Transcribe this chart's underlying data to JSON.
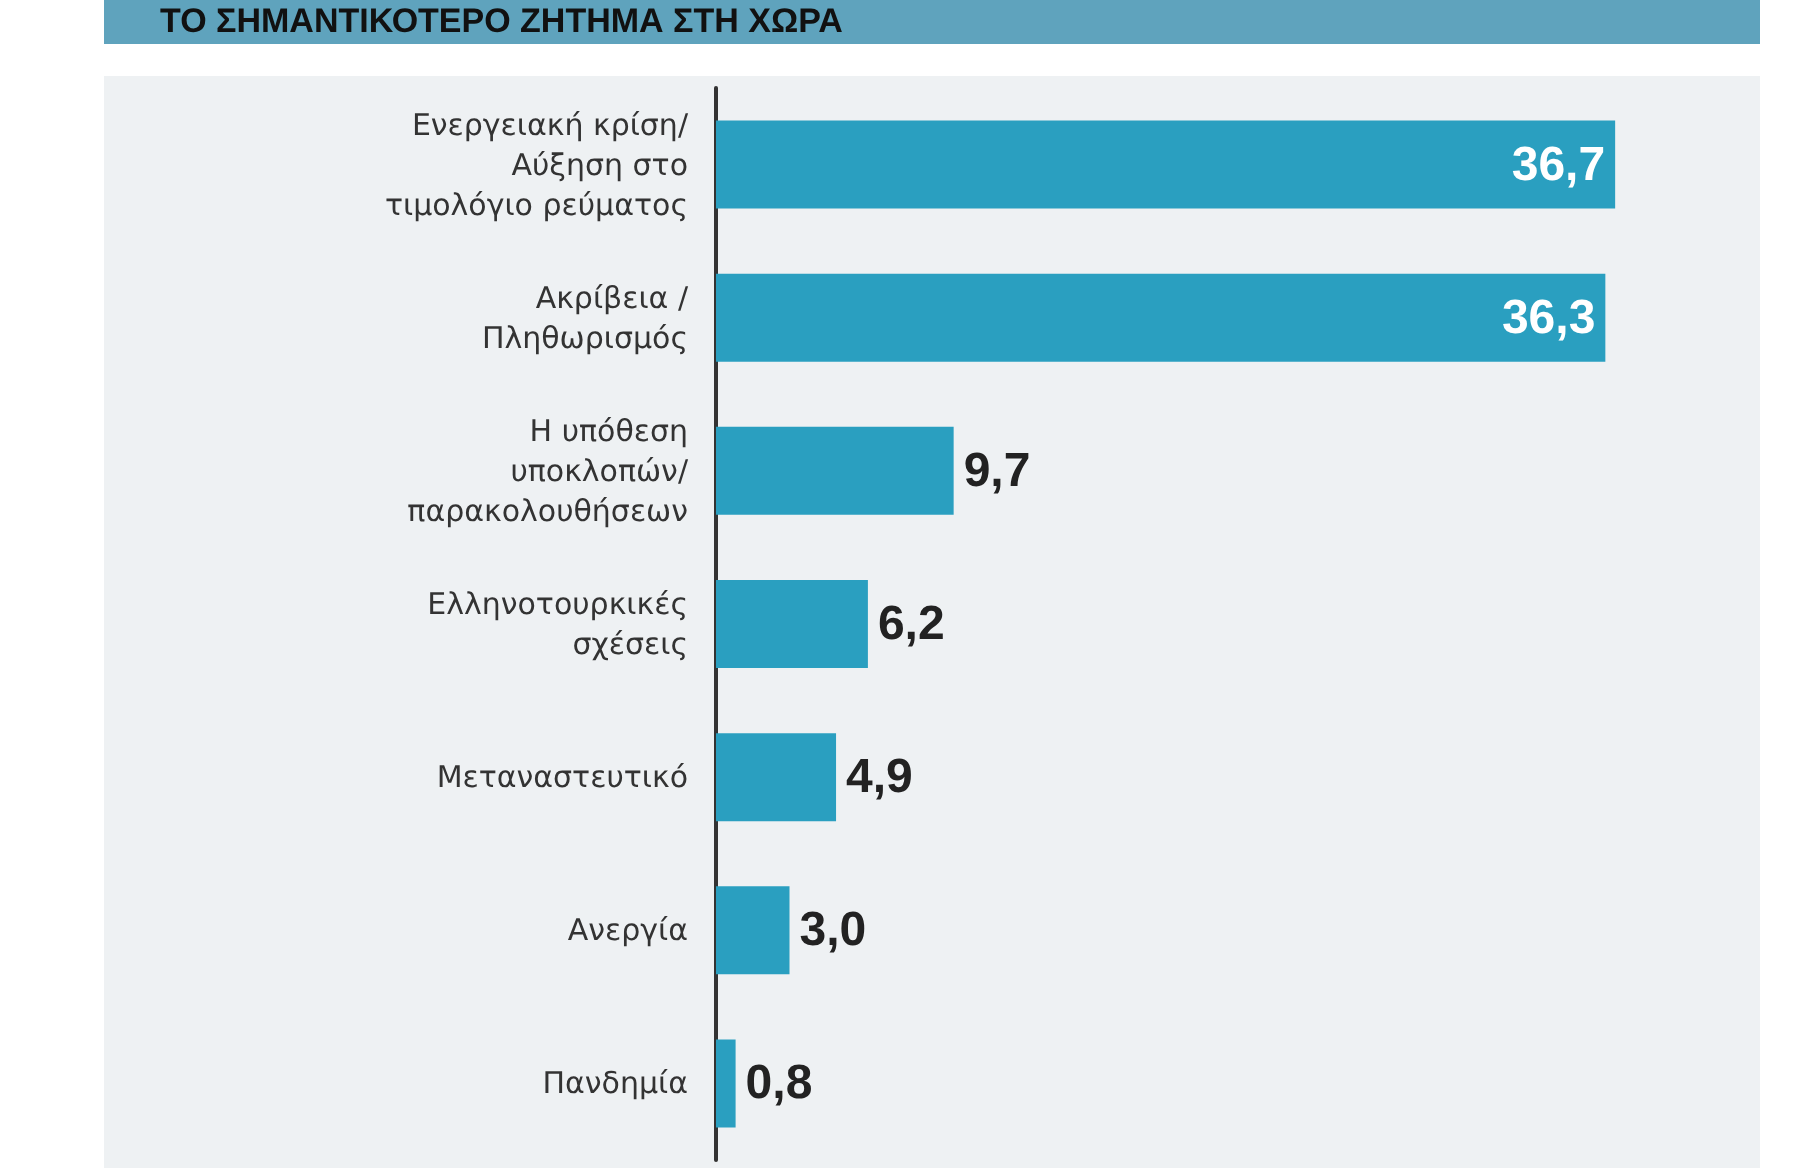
{
  "chart_data": {
    "type": "bar",
    "orientation": "horizontal",
    "title": "ΤΟ ΣΗΜΑΝΤΙΚΟΤΕΡΟ ΖΗΤΗΜΑ ΣΤΗ ΧΩΡΑ",
    "categories": [
      "Ενεργειακή κρίση/\nΑύξηση στο\nτιμολόγιο ρεύματος",
      "Ακρίβεια /\nΠληθωρισμός",
      "Η υπόθεση\nυποκλοπών/\nπαρακολουθήσεων",
      "Ελληνοτουρκικές\nσχέσεις",
      "Μεταναστευτικό",
      "Ανεργία",
      "Πανδημία"
    ],
    "values": [
      36.7,
      36.3,
      9.7,
      6.2,
      4.9,
      3.0,
      0.8
    ],
    "value_labels": [
      "36,7",
      "36,3",
      "9,7",
      "6,2",
      "4,9",
      "3,0",
      "0,8"
    ],
    "color": "#2a9fc0"
  }
}
